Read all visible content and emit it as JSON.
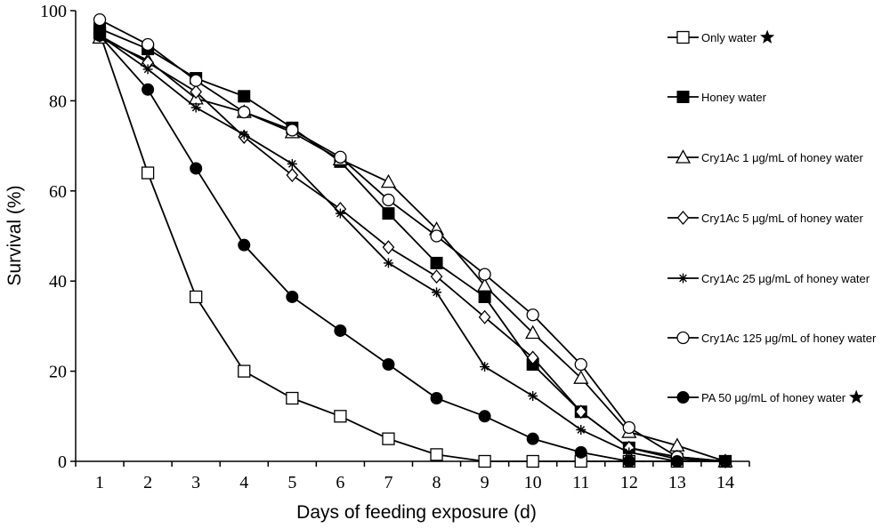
{
  "chart_data": {
    "type": "line",
    "xlabel": "Days of feeding exposure (d)",
    "ylabel": "Survival  (%)",
    "x": [
      1,
      2,
      3,
      4,
      5,
      6,
      7,
      8,
      9,
      10,
      11,
      12,
      13,
      14
    ],
    "xlim": [
      0.5,
      14.5
    ],
    "ylim": [
      0,
      100
    ],
    "yticks": [
      0,
      20,
      40,
      60,
      80,
      100
    ],
    "grid": false,
    "legend_position": "right",
    "series": [
      {
        "name": "Only water",
        "marker": "square-open",
        "star": true,
        "values": [
          95,
          64,
          36.5,
          20,
          14,
          10,
          5,
          1.5,
          0,
          0,
          0,
          0,
          0,
          0
        ]
      },
      {
        "name": "Honey water",
        "marker": "square-filled",
        "star": false,
        "values": [
          96,
          91.5,
          85,
          81,
          74,
          66.5,
          55,
          44,
          36.5,
          21.5,
          11,
          3,
          0.5,
          0
        ]
      },
      {
        "name": "Cry1Ac 1 μg/mL of honey water",
        "marker": "triangle-open",
        "star": false,
        "values": [
          94,
          89,
          80.5,
          77.5,
          73,
          67,
          62,
          51.5,
          39,
          28.5,
          18.5,
          6.5,
          3.5,
          0
        ]
      },
      {
        "name": "Cry1Ac 5 μg/mL of honey water",
        "marker": "diamond-open",
        "star": false,
        "values": [
          94.5,
          88.5,
          82,
          72,
          63.5,
          56,
          47.5,
          41,
          32,
          23,
          11,
          3,
          1,
          0
        ]
      },
      {
        "name": "Cry1Ac 25 μg/mL  of honey water",
        "marker": "asterisk",
        "star": false,
        "values": [
          94.5,
          87,
          78.5,
          72.5,
          66,
          55,
          44,
          37.5,
          21,
          14.5,
          7,
          2,
          0,
          0
        ]
      },
      {
        "name": "Cry1Ac 125 μg/mL  of honey water",
        "marker": "circle-open",
        "star": false,
        "values": [
          98,
          92.5,
          84.5,
          77.5,
          73.5,
          67.5,
          58,
          50,
          41.5,
          32.5,
          21.5,
          7.5,
          1,
          0
        ]
      },
      {
        "name": "PA 50 μg/mL of honey water",
        "marker": "circle-filled",
        "star": true,
        "values": [
          94.5,
          82.5,
          65,
          48,
          36.5,
          29,
          21.5,
          14,
          10,
          5,
          2,
          0,
          0,
          0
        ]
      }
    ]
  }
}
